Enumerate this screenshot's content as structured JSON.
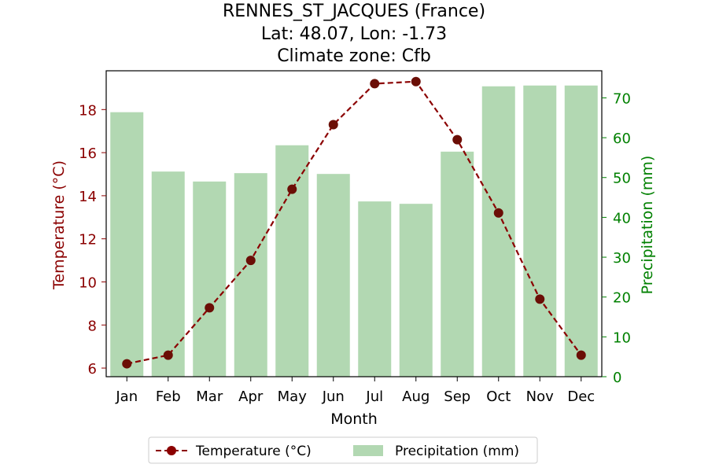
{
  "title_lines": [
    "RENNES_ST_JACQUES (France)",
    "Lat: 48.07, Lon: -1.73",
    "Climate zone: Cfb"
  ],
  "colors": {
    "temperature_line": "#8b0000",
    "temperature_marker": "#6b0e06",
    "precipitation_bar": "#b2d8b2",
    "left_axis_label": "#8b0000",
    "right_axis_label": "#008000",
    "axis": "#000000"
  },
  "chart_data": {
    "type": "bar",
    "title": "RENNES_ST_JACQUES (France)\nLat: 48.07, Lon: -1.73\nClimate zone: Cfb",
    "categories": [
      "Jan",
      "Feb",
      "Mar",
      "Apr",
      "May",
      "Jun",
      "Jul",
      "Aug",
      "Sep",
      "Oct",
      "Nov",
      "Dec"
    ],
    "xlabel": "Month",
    "ylabel_left": "Temperature (°C)",
    "ylabel_right": "Precipitation (mm)",
    "y_left_range": [
      5.6,
      19.8
    ],
    "y_right_range": [
      0,
      76.8
    ],
    "y_left_ticks": [
      6,
      8,
      10,
      12,
      14,
      16,
      18
    ],
    "y_right_ticks": [
      0,
      10,
      20,
      30,
      40,
      50,
      60,
      70
    ],
    "series": [
      {
        "name": "Temperature (°C)",
        "type": "line",
        "axis": "left",
        "line_style": "dashed",
        "marker": "circle",
        "values": [
          6.2,
          6.6,
          8.8,
          11.0,
          14.3,
          17.3,
          19.2,
          19.3,
          16.6,
          13.2,
          9.2,
          6.6
        ]
      },
      {
        "name": "Precipitation (mm)",
        "type": "bar",
        "axis": "right",
        "values": [
          66.4,
          51.5,
          49.0,
          51.1,
          58.1,
          50.9,
          44.0,
          43.4,
          56.5,
          72.9,
          73.1,
          73.1
        ]
      }
    ],
    "grid": false,
    "legend": {
      "placement": "bottom-center",
      "entries": [
        "Temperature (°C)",
        "Precipitation (mm)"
      ]
    }
  }
}
